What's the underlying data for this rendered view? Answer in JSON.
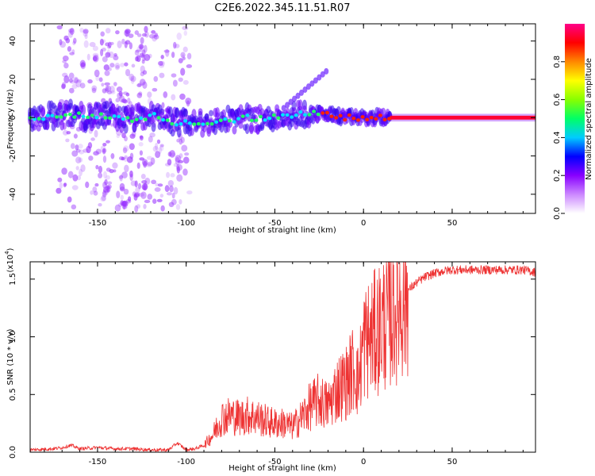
{
  "chart_data": [
    {
      "type": "heatmap",
      "title": "C2E6.2022.345.11.51.R07",
      "xlabel": "Height of straight line (km)",
      "ylabel": "Frequency (Hz)",
      "xlim": [
        -188,
        97
      ],
      "ylim": [
        -50,
        49
      ],
      "xticks": [
        -150,
        -100,
        -50,
        0,
        50
      ],
      "xtick_labels": [
        "-150",
        "-100",
        "-50",
        "0",
        "50"
      ],
      "yticks": [
        -40,
        -20,
        0,
        20,
        40
      ],
      "ytick_labels": [
        "-40",
        "-20",
        "0",
        "20",
        "40"
      ],
      "colorbar": {
        "label": "Normalized spectral amplitude",
        "range": [
          0,
          1
        ],
        "ticks": [
          0.0,
          0.2,
          0.4,
          0.6,
          0.8
        ],
        "tick_labels": [
          "0.0",
          "0.2",
          "0.4",
          "0.6",
          "0.8"
        ],
        "colormap_stops": [
          "#ffffff",
          "#cc88ff",
          "#8800ff",
          "#0000ff",
          "#00ccff",
          "#00ff66",
          "#88ff00",
          "#ffff00",
          "#ff8800",
          "#ff0000",
          "#ff0088"
        ]
      },
      "ridge": {
        "x": [
          -188,
          -175,
          -165,
          -155,
          -145,
          -135,
          -125,
          -115,
          -105,
          -95,
          -85,
          -75,
          -65,
          -55,
          -45,
          -35,
          -25,
          -15,
          -8,
          -3,
          5,
          12,
          20,
          40,
          60,
          80,
          97
        ],
        "y": [
          0,
          1,
          2,
          0,
          1,
          -1,
          0,
          1,
          -3,
          -3,
          -2,
          -1,
          0,
          -1,
          1,
          2,
          2,
          1,
          0,
          0,
          0,
          0,
          0,
          0,
          0,
          0,
          0
        ]
      },
      "grid": false
    },
    {
      "type": "line",
      "xlabel": "Height of straight line (km)",
      "ylabel": "SNR (10 * v/v)",
      "yscale_label": "(x10",
      "yscale_exp": "4",
      "yscale_close": ")",
      "xlim": [
        -188,
        97
      ],
      "ylim": [
        0,
        1.65
      ],
      "xticks": [
        -150,
        -100,
        -50,
        0,
        50
      ],
      "xtick_labels": [
        "-150",
        "-100",
        "-50",
        "0",
        "50"
      ],
      "yticks": [
        0.0,
        0.5,
        1.0,
        1.5
      ],
      "ytick_labels": [
        "0.0",
        "0.5",
        "1.0",
        "1.5"
      ],
      "series": [
        {
          "color": "#ee3333",
          "x": [
            -188,
            -175,
            -170,
            -165,
            -160,
            -150,
            -140,
            -130,
            -120,
            -110,
            -105,
            -100,
            -95,
            -90,
            -85,
            -80,
            -75,
            -70,
            -65,
            -60,
            -55,
            -50,
            -45,
            -40,
            -35,
            -30,
            -25,
            -20,
            -15,
            -10,
            -5,
            -3,
            0,
            5,
            10,
            15,
            20,
            25,
            30,
            35,
            40,
            45,
            50,
            60,
            70,
            80,
            90,
            97
          ],
          "y": [
            0.02,
            0.03,
            0.04,
            0.06,
            0.03,
            0.04,
            0.03,
            0.03,
            0.02,
            0.02,
            0.08,
            0.02,
            0.03,
            0.06,
            0.15,
            0.3,
            0.32,
            0.3,
            0.32,
            0.3,
            0.27,
            0.25,
            0.25,
            0.22,
            0.3,
            0.4,
            0.45,
            0.4,
            0.55,
            0.6,
            0.75,
            0.6,
            0.95,
            1.0,
            1.1,
            1.2,
            1.3,
            1.4,
            1.47,
            1.52,
            1.55,
            1.57,
            1.58,
            1.58,
            1.58,
            1.58,
            1.58,
            1.56
          ]
        }
      ]
    }
  ]
}
